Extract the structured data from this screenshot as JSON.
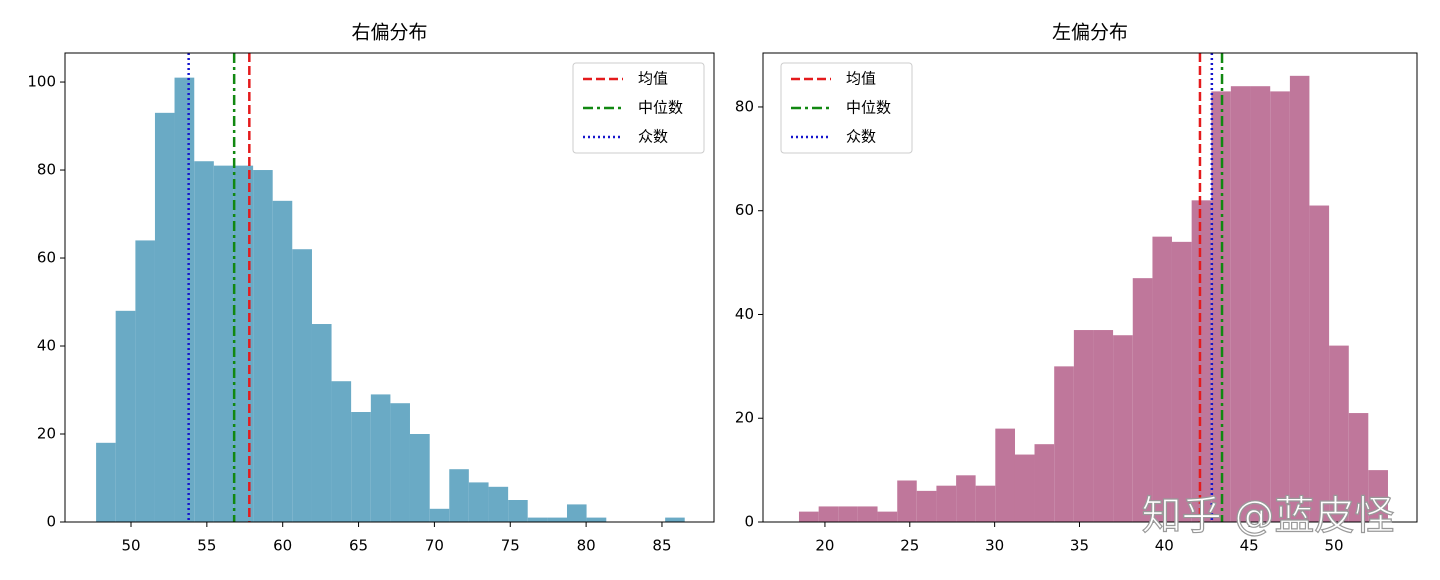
{
  "chart_data": [
    {
      "type": "histogram",
      "title": "右偏分布",
      "color": "#6aaac5",
      "bins": [
        47.7,
        48.99,
        50.29,
        51.58,
        52.87,
        54.17,
        55.46,
        56.75,
        58.05,
        59.34,
        60.63,
        61.93,
        63.22,
        64.51,
        65.81,
        67.1,
        68.39,
        69.69,
        70.98,
        72.27,
        73.57,
        74.86,
        76.15,
        77.45,
        78.74,
        80.03,
        81.33,
        82.62,
        83.91,
        85.21,
        86.5
      ],
      "values": [
        18,
        48,
        64,
        93,
        101,
        82,
        81,
        81,
        80,
        73,
        62,
        45,
        32,
        25,
        29,
        27,
        20,
        3,
        12,
        9,
        8,
        5,
        1,
        1,
        4,
        1,
        0,
        0,
        0,
        1
      ],
      "xlim": [
        45.65,
        88.43
      ],
      "ylim": [
        0,
        106.6
      ],
      "xticks": [
        50,
        55,
        60,
        65,
        70,
        75,
        80,
        85
      ],
      "yticks": [
        0,
        20,
        40,
        60,
        80,
        100
      ],
      "lines": [
        {
          "name": "均值",
          "value": 57.8,
          "color": "#e41a1c",
          "style": "dashed"
        },
        {
          "name": "中位数",
          "value": 56.8,
          "color": "#118811",
          "style": "dashdot"
        },
        {
          "name": "众数",
          "value": 53.8,
          "color": "#1515cc",
          "style": "dotted"
        }
      ],
      "legend": "upper right"
    },
    {
      "type": "histogram",
      "title": "左偏分布",
      "color": "#bf779b",
      "bins": [
        18.47,
        19.63,
        20.78,
        21.94,
        23.1,
        24.26,
        25.41,
        26.57,
        27.73,
        28.88,
        30.04,
        31.2,
        32.35,
        33.51,
        34.67,
        35.83,
        36.98,
        38.14,
        39.3,
        40.45,
        41.61,
        42.77,
        43.92,
        45.08,
        46.24,
        47.4,
        48.55,
        49.71,
        50.87,
        52.02,
        53.18
      ],
      "values": [
        2,
        3,
        3,
        3,
        2,
        8,
        6,
        7,
        9,
        7,
        18,
        13,
        15,
        30,
        37,
        37,
        36,
        47,
        55,
        54,
        62,
        83,
        84,
        84,
        83,
        86,
        61,
        34,
        21,
        10
      ],
      "xlim": [
        16.35,
        54.89
      ],
      "ylim": [
        0,
        90.4
      ],
      "xticks": [
        20,
        25,
        30,
        35,
        40,
        45,
        50
      ],
      "yticks": [
        0,
        20,
        40,
        60,
        80
      ],
      "lines": [
        {
          "name": "均值",
          "value": 42.1,
          "color": "#e41a1c",
          "style": "dashed"
        },
        {
          "name": "中位数",
          "value": 43.4,
          "color": "#118811",
          "style": "dashdot"
        },
        {
          "name": "众数",
          "value": 42.8,
          "color": "#1515cc",
          "style": "dotted"
        }
      ],
      "legend": "upper left"
    }
  ],
  "watermark": "知乎 @蓝皮怪"
}
